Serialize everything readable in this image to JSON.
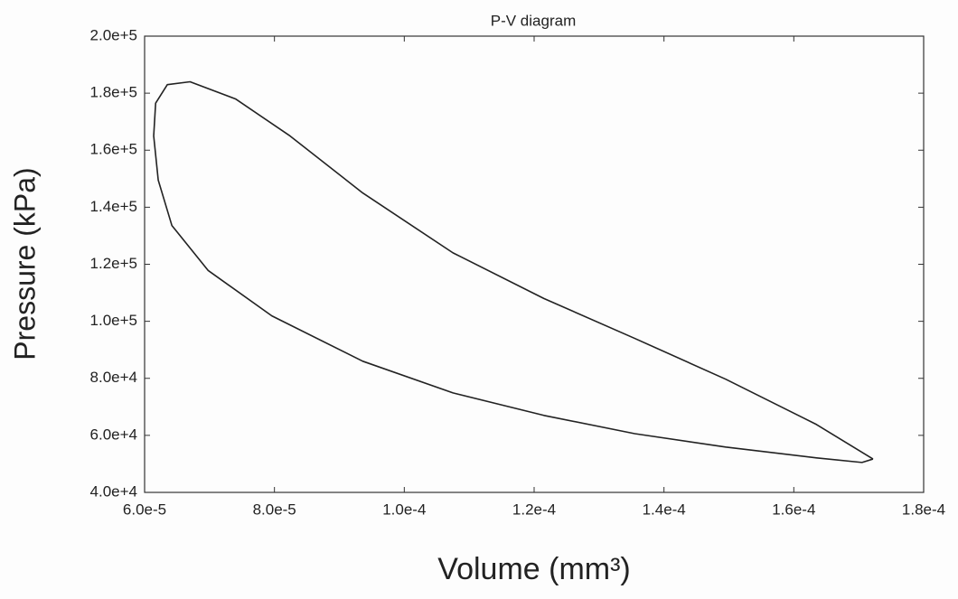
{
  "chart_data": {
    "type": "line",
    "title": "P-V diagram",
    "x_label": "Volume (mm³)",
    "y_label": "Pressure (kPa)",
    "x": [
      0.0001722,
      0.0001635,
      0.0001495,
      0.0001355,
      0.0001215,
      0.0001075,
      9.36e-05,
      8.24e-05,
      7.4e-05,
      6.7e-05,
      6.35e-05,
      6.17e-05,
      6.14e-05,
      6.21e-05,
      6.42e-05,
      6.98e-05,
      7.96e-05,
      9.36e-05,
      0.0001075,
      0.0001215,
      0.0001355,
      0.0001495,
      0.0001635,
      0.0001705,
      0.0001722
    ],
    "series": [
      {
        "color": "#222222",
        "values": [
          51700,
          63800,
          79700,
          94000,
          108000,
          124000,
          145000,
          165000,
          178000,
          184000,
          183000,
          176500,
          165000,
          149500,
          133600,
          117800,
          101900,
          86000,
          74900,
          67000,
          60600,
          55900,
          52100,
          50500,
          51700
        ]
      }
    ],
    "xlim": [
      6e-05,
      0.00018
    ],
    "xticks": [
      {
        "value": 6e-05,
        "label": "6.0e-5"
      },
      {
        "value": 8e-05,
        "label": "8.0e-5"
      },
      {
        "value": 0.0001,
        "label": "1.0e-4"
      },
      {
        "value": 0.00012,
        "label": "1.2e-4"
      },
      {
        "value": 0.00014,
        "label": "1.4e-4"
      },
      {
        "value": 0.00016,
        "label": "1.6e-4"
      },
      {
        "value": 0.00018,
        "label": "1.8e-4"
      }
    ],
    "ylim": [
      40000,
      200000
    ],
    "yticks": [
      {
        "value": 40000,
        "label": "4.0e+4"
      },
      {
        "value": 60000,
        "label": "6.0e+4"
      },
      {
        "value": 80000,
        "label": "8.0e+4"
      },
      {
        "value": 100000,
        "label": "1.0e+5"
      },
      {
        "value": 120000,
        "label": "1.2e+5"
      },
      {
        "value": 140000,
        "label": "1.4e+5"
      },
      {
        "value": 160000,
        "label": "1.6e+5"
      },
      {
        "value": 180000,
        "label": "1.8e+5"
      },
      {
        "value": 200000,
        "label": "2.0e+5"
      }
    ],
    "grid": false
  }
}
